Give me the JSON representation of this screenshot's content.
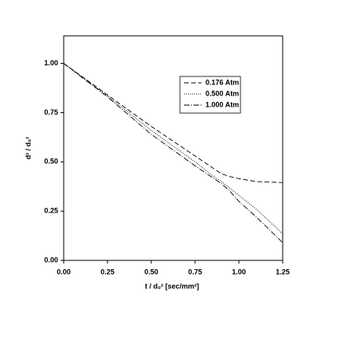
{
  "chart_data": {
    "type": "line",
    "x_label": "t / d₀² [sec/mm²]",
    "y_label": "d² / d₀²",
    "x": [
      0,
      0.25,
      0.5,
      0.75,
      0.85,
      0.9,
      0.95,
      1.0,
      1.1,
      1.25
    ],
    "series": [
      {
        "name": "0.176 Atm",
        "color": "#000000",
        "dash": "dashed",
        "values": [
          1.0,
          0.84,
          0.68,
          0.53,
          0.47,
          0.44,
          0.425,
          0.415,
          0.4,
          0.395
        ]
      },
      {
        "name": "0.500 Atm",
        "color": "#000000",
        "dash": "dotted",
        "values": [
          1.0,
          0.835,
          0.66,
          0.5,
          0.43,
          0.4,
          0.365,
          0.33,
          0.26,
          0.135
        ]
      },
      {
        "name": "1.000 Atm",
        "color": "#000000",
        "dash": "dashdot",
        "values": [
          1.0,
          0.83,
          0.64,
          0.48,
          0.42,
          0.39,
          0.35,
          0.3,
          0.22,
          0.09
        ]
      }
    ],
    "xlim": [
      0,
      1.25
    ],
    "ylim": [
      0,
      1.14
    ],
    "xticks": [
      {
        "value": 0,
        "label": "0.00"
      },
      {
        "value": 0.25,
        "label": "0.25"
      },
      {
        "value": 0.5,
        "label": "0.50"
      },
      {
        "value": 0.75,
        "label": "0.75"
      },
      {
        "value": 1,
        "label": "1.00"
      },
      {
        "value": 1.25,
        "label": "1.25"
      }
    ],
    "yticks": [
      {
        "value": 0,
        "label": "0.00"
      },
      {
        "value": 0.25,
        "label": "0.25"
      },
      {
        "value": 0.5,
        "label": "0.50"
      },
      {
        "value": 0.75,
        "label": "0.75"
      },
      {
        "value": 1,
        "label": "1.00"
      }
    ],
    "grid": false
  }
}
